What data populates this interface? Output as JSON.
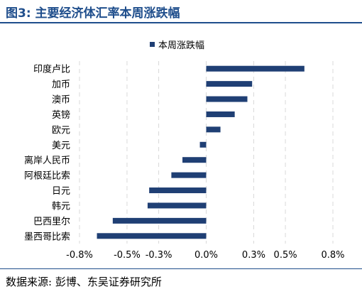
{
  "page": {
    "title": "图3:  主要经济体汇率本周涨跌幅",
    "source": "数据来源: 彭博、东吴证券研究所"
  },
  "colors": {
    "bar": "#1f3f74",
    "title": "#1f4e8c",
    "grid": "#d9d9d9"
  },
  "chart_data": {
    "type": "bar",
    "orientation": "horizontal",
    "series": [
      {
        "name": "本周涨跌幅",
        "values": [
          0.62,
          0.29,
          0.26,
          0.18,
          0.09,
          -0.04,
          -0.15,
          -0.22,
          -0.36,
          -0.37,
          -0.59,
          -0.69
        ]
      }
    ],
    "categories": [
      "印度卢比",
      "加币",
      "澳币",
      "英镑",
      "欧元",
      "美元",
      "离岸人民币",
      "阿根廷比索",
      "日元",
      "韩元",
      "巴西里尔",
      "墨西哥比索"
    ],
    "xlim": [
      -0.8,
      0.8
    ],
    "ticks": [
      -0.8,
      -0.5,
      -0.3,
      0.0,
      0.3,
      0.5,
      0.8
    ],
    "tick_labels": [
      "-0.8%",
      "-0.5%",
      "-0.3%",
      "0.0%",
      "0.3%",
      "0.5%",
      "0.8%"
    ],
    "grid": "vertical dashed",
    "legend": "top-center"
  }
}
